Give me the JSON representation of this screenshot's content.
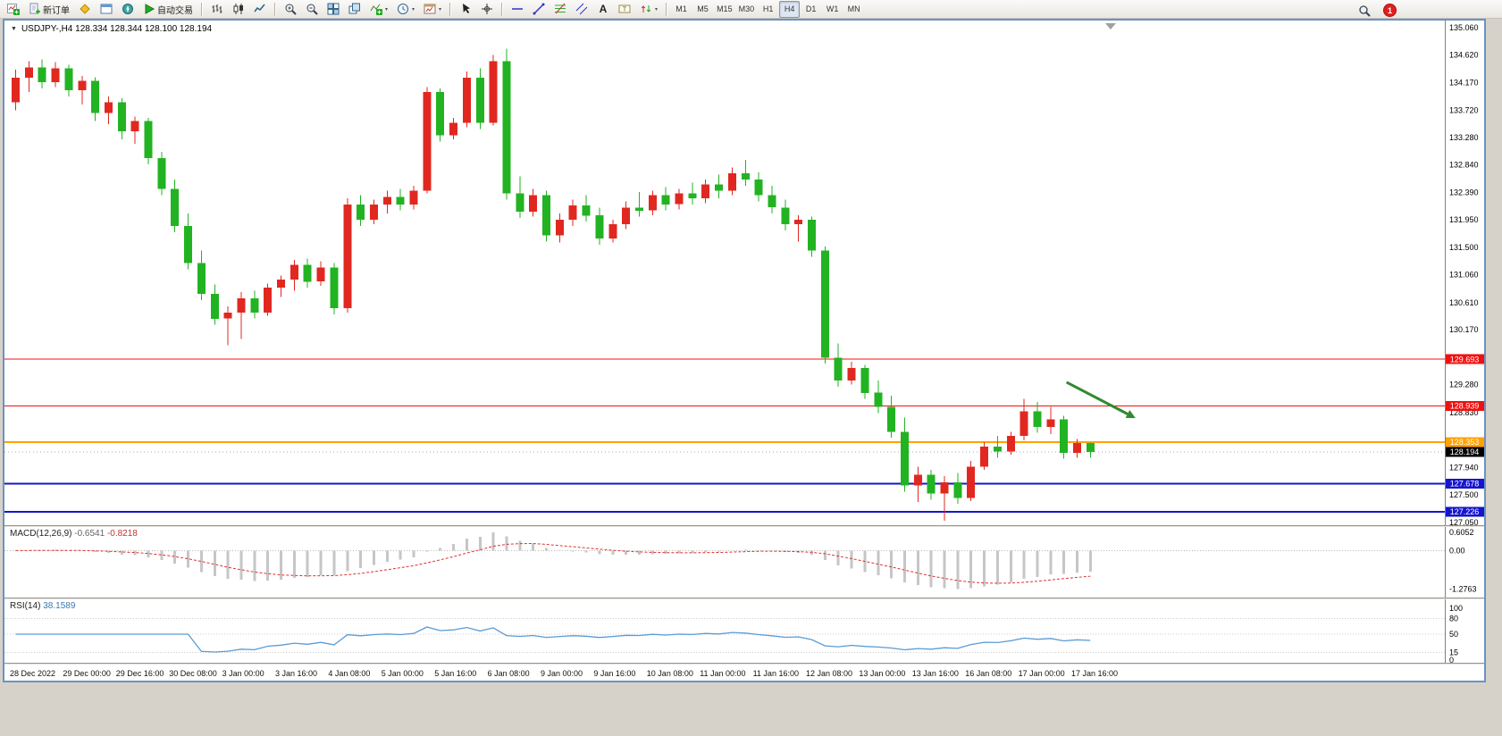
{
  "app": {
    "name": "MetaTrader 4"
  },
  "toolbar": {
    "items": [
      {
        "type": "button",
        "name": "new-chart-button",
        "icon": "chart-plus-icon"
      },
      {
        "type": "button",
        "name": "new-order-button",
        "icon": "new-order-icon",
        "label": "新订单"
      },
      {
        "type": "button",
        "name": "metaeditor-button",
        "icon": "metaeditor-icon"
      },
      {
        "type": "button",
        "name": "data-window-button",
        "icon": "data-window-icon"
      },
      {
        "type": "button",
        "name": "navigator-button",
        "icon": "navigator-icon"
      },
      {
        "type": "button",
        "name": "autotrading-button",
        "icon": "autotrading-icon",
        "label": "自动交易"
      },
      {
        "type": "sep"
      },
      {
        "type": "button",
        "name": "bar-chart-button",
        "icon": "bar-chart-icon"
      },
      {
        "type": "button",
        "name": "candlestick-chart-button",
        "icon": "candlestick-icon"
      },
      {
        "type": "button",
        "name": "line-chart-button",
        "icon": "line-chart-icon"
      },
      {
        "type": "sep"
      },
      {
        "type": "button",
        "name": "zoom-in-button",
        "icon": "zoom-in-icon"
      },
      {
        "type": "button",
        "name": "zoom-out-button",
        "icon": "zoom-out-icon"
      },
      {
        "type": "button",
        "name": "tile-windows-button",
        "icon": "tile-windows-icon"
      },
      {
        "type": "button",
        "name": "cascade-windows-button",
        "icon": "cascade-windows-icon"
      },
      {
        "type": "button",
        "name": "indicators-button",
        "icon": "indicators-icon",
        "caret": true
      },
      {
        "type": "button",
        "name": "periods-button",
        "icon": "clock-icon",
        "caret": true
      },
      {
        "type": "button",
        "name": "templates-button",
        "icon": "template-icon",
        "caret": true
      },
      {
        "type": "sep"
      },
      {
        "type": "button",
        "name": "cursor-button",
        "icon": "cursor-icon"
      },
      {
        "type": "button",
        "name": "crosshair-button",
        "icon": "crosshair-icon"
      },
      {
        "type": "sep"
      },
      {
        "type": "button",
        "name": "hline-button",
        "icon": "hline-icon"
      },
      {
        "type": "button",
        "name": "trendline-button",
        "icon": "trendline-icon"
      },
      {
        "type": "button",
        "name": "fibonacci-button",
        "icon": "fibonacci-icon"
      },
      {
        "type": "button",
        "name": "channel-button",
        "icon": "channel-icon"
      },
      {
        "type": "button",
        "name": "text-button",
        "icon": "text-icon"
      },
      {
        "type": "button",
        "name": "label-button",
        "icon": "label-icon"
      },
      {
        "type": "button",
        "name": "arrows-button",
        "icon": "arrows-icon",
        "caret": true
      },
      {
        "type": "sep"
      }
    ],
    "timeframes": [
      "M1",
      "M5",
      "M15",
      "M30",
      "H1",
      "H4",
      "D1",
      "W1",
      "MN"
    ],
    "active_timeframe": "H4",
    "notification_count": "1"
  },
  "chart": {
    "title": "USDJPY-,H4  128.334 128.344 128.100 128.194",
    "symbol": "USDJPY-",
    "period": "H4"
  },
  "chart_data": {
    "type": "candlestick",
    "symbol": "USDJPY-",
    "timeframe": "H4",
    "ohlc_readout": {
      "open": "128.334",
      "high": "128.344",
      "low": "128.100",
      "close": "128.194"
    },
    "up_color": "#e02820",
    "down_color": "#22b322",
    "price_axis": {
      "labels": [
        "135.060",
        "134.620",
        "134.170",
        "133.720",
        "133.280",
        "132.840",
        "132.390",
        "131.950",
        "131.500",
        "131.060",
        "130.610",
        "130.170",
        "129.280",
        "128.830",
        "127.940",
        "127.500",
        "127.050"
      ],
      "visible_min": 127.007,
      "visible_max": 135.175
    },
    "time_labels": [
      "28 Dec 2022",
      "29 Dec 00:00",
      "29 Dec 16:00",
      "30 Dec 08:00",
      "3 Jan 00:00",
      "3 Jan 16:00",
      "4 Jan 08:00",
      "5 Jan 00:00",
      "5 Jan 16:00",
      "6 Jan 08:00",
      "9 Jan 00:00",
      "9 Jan 16:00",
      "10 Jan 08:00",
      "11 Jan 00:00",
      "11 Jan 16:00",
      "12 Jan 08:00",
      "13 Jan 00:00",
      "13 Jan 16:00",
      "16 Jan 08:00",
      "17 Jan 00:00",
      "17 Jan 16:00"
    ],
    "candles": [
      [
        133.85,
        134.38,
        133.72,
        134.25
      ],
      [
        134.25,
        134.52,
        134.02,
        134.42
      ],
      [
        134.42,
        134.55,
        134.08,
        134.18
      ],
      [
        134.18,
        134.5,
        134.1,
        134.4
      ],
      [
        134.4,
        134.46,
        133.95,
        134.05
      ],
      [
        134.05,
        134.28,
        133.82,
        134.2
      ],
      [
        134.2,
        134.26,
        133.55,
        133.68
      ],
      [
        133.68,
        133.95,
        133.5,
        133.85
      ],
      [
        133.85,
        133.92,
        133.25,
        133.38
      ],
      [
        133.38,
        133.62,
        133.18,
        133.55
      ],
      [
        133.55,
        133.6,
        132.85,
        132.95
      ],
      [
        132.95,
        133.05,
        132.35,
        132.45
      ],
      [
        132.45,
        132.6,
        131.75,
        131.85
      ],
      [
        131.85,
        132.05,
        131.15,
        131.25
      ],
      [
        131.25,
        131.45,
        130.65,
        130.75
      ],
      [
        130.75,
        130.9,
        130.25,
        130.35
      ],
      [
        130.35,
        130.55,
        129.92,
        130.45
      ],
      [
        130.45,
        130.78,
        130.02,
        130.68
      ],
      [
        130.68,
        130.8,
        130.35,
        130.45
      ],
      [
        130.45,
        130.92,
        130.4,
        130.85
      ],
      [
        130.85,
        131.05,
        130.7,
        130.98
      ],
      [
        130.98,
        131.3,
        130.8,
        131.22
      ],
      [
        131.22,
        131.32,
        130.85,
        130.95
      ],
      [
        130.95,
        131.28,
        130.88,
        131.18
      ],
      [
        131.18,
        131.25,
        130.42,
        130.52
      ],
      [
        130.52,
        132.3,
        130.45,
        132.2
      ],
      [
        132.2,
        132.35,
        131.85,
        131.95
      ],
      [
        131.95,
        132.28,
        131.88,
        132.2
      ],
      [
        132.2,
        132.42,
        132.05,
        132.32
      ],
      [
        132.32,
        132.45,
        132.1,
        132.2
      ],
      [
        132.2,
        132.5,
        132.12,
        132.42
      ],
      [
        132.42,
        134.1,
        132.38,
        134.02
      ],
      [
        134.02,
        134.08,
        133.22,
        133.32
      ],
      [
        133.32,
        133.6,
        133.25,
        133.52
      ],
      [
        133.52,
        134.35,
        133.45,
        134.25
      ],
      [
        134.25,
        134.4,
        133.42,
        133.52
      ],
      [
        133.52,
        134.62,
        133.48,
        134.52
      ],
      [
        134.52,
        134.72,
        132.28,
        132.38
      ],
      [
        132.38,
        132.65,
        131.98,
        132.08
      ],
      [
        132.08,
        132.45,
        132.0,
        132.35
      ],
      [
        132.35,
        132.42,
        131.6,
        131.7
      ],
      [
        131.7,
        132.05,
        131.58,
        131.95
      ],
      [
        131.95,
        132.28,
        131.85,
        132.18
      ],
      [
        132.18,
        132.35,
        131.92,
        132.02
      ],
      [
        132.02,
        132.15,
        131.55,
        131.65
      ],
      [
        131.65,
        131.95,
        131.58,
        131.88
      ],
      [
        131.88,
        132.25,
        131.8,
        132.15
      ],
      [
        132.15,
        132.4,
        132.0,
        132.1
      ],
      [
        132.1,
        132.42,
        132.02,
        132.35
      ],
      [
        132.35,
        132.48,
        132.1,
        132.2
      ],
      [
        132.2,
        132.45,
        132.12,
        132.38
      ],
      [
        132.38,
        132.55,
        132.2,
        132.3
      ],
      [
        132.3,
        132.6,
        132.22,
        132.52
      ],
      [
        132.52,
        132.68,
        132.3,
        132.42
      ],
      [
        132.42,
        132.8,
        132.35,
        132.7
      ],
      [
        132.7,
        132.92,
        132.5,
        132.6
      ],
      [
        132.6,
        132.72,
        132.25,
        132.35
      ],
      [
        132.35,
        132.5,
        132.05,
        132.15
      ],
      [
        132.15,
        132.28,
        131.78,
        131.88
      ],
      [
        131.88,
        132.02,
        131.6,
        131.95
      ],
      [
        131.95,
        132.0,
        131.35,
        131.45
      ],
      [
        131.45,
        131.52,
        129.62,
        129.72
      ],
      [
        129.72,
        129.95,
        129.25,
        129.35
      ],
      [
        129.35,
        129.65,
        129.28,
        129.55
      ],
      [
        129.55,
        129.6,
        129.05,
        129.15
      ],
      [
        129.15,
        129.35,
        128.82,
        128.92
      ],
      [
        128.92,
        129.1,
        128.42,
        128.52
      ],
      [
        128.52,
        128.75,
        127.55,
        127.65
      ],
      [
        127.65,
        127.95,
        127.38,
        127.82
      ],
      [
        127.82,
        127.9,
        127.42,
        127.52
      ],
      [
        127.52,
        127.8,
        127.08,
        127.7
      ],
      [
        127.7,
        127.85,
        127.35,
        127.45
      ],
      [
        127.45,
        128.05,
        127.4,
        127.95
      ],
      [
        127.95,
        128.35,
        127.9,
        128.28
      ],
      [
        128.28,
        128.45,
        128.1,
        128.2
      ],
      [
        128.2,
        128.52,
        128.15,
        128.45
      ],
      [
        128.45,
        129.05,
        128.38,
        128.85
      ],
      [
        128.85,
        129.0,
        128.5,
        128.6
      ],
      [
        128.6,
        128.92,
        128.48,
        128.72
      ],
      [
        128.72,
        128.78,
        128.08,
        128.18
      ],
      [
        128.18,
        128.4,
        128.1,
        128.334
      ],
      [
        128.334,
        128.344,
        128.1,
        128.194
      ]
    ],
    "hlines": [
      {
        "price": 129.693,
        "badge": "129.693",
        "color": "#f01010",
        "width": 1
      },
      {
        "price": 128.939,
        "badge": "128.939",
        "color": "#f01010",
        "width": 1
      },
      {
        "price": 128.353,
        "badge": "128.353",
        "color": "#ffa200",
        "width": 2
      },
      {
        "price": 127.678,
        "badge": "127.678",
        "color": "#1515cc",
        "width": 2
      },
      {
        "price": 127.226,
        "badge": "127.226",
        "color": "#1515cc",
        "width": 2
      }
    ],
    "current_price": {
      "value": 128.194,
      "badge": "128.194",
      "color": "#000000"
    },
    "arrow_annotation": {
      "from": {
        "index": 79.2,
        "price": 129.32
      },
      "to": {
        "index": 84.4,
        "price": 128.74
      },
      "color": "#2e8b2e"
    },
    "macd": {
      "label": "MACD(12,26,9)",
      "value_main": "-0.6541",
      "value_signal": "-0.8218",
      "scale_labels": [
        "0.6052",
        "0.00",
        "-1.2763"
      ],
      "scale_values": [
        0.6052,
        0,
        -1.2763
      ],
      "range": {
        "min": -1.55,
        "max": 0.78
      },
      "histogram_color": "#c6c6c6",
      "signal_color": "#e03030"
    },
    "rsi": {
      "label": "RSI(14)",
      "value": "38.1589",
      "scale_labels": [
        "100",
        "80",
        "50",
        "15",
        "0"
      ],
      "scale_values": [
        100,
        80,
        50,
        15,
        0
      ],
      "levels": [
        80,
        50,
        15
      ],
      "line_color": "#5b9bd5",
      "range": {
        "min": 0,
        "max": 100
      }
    }
  }
}
